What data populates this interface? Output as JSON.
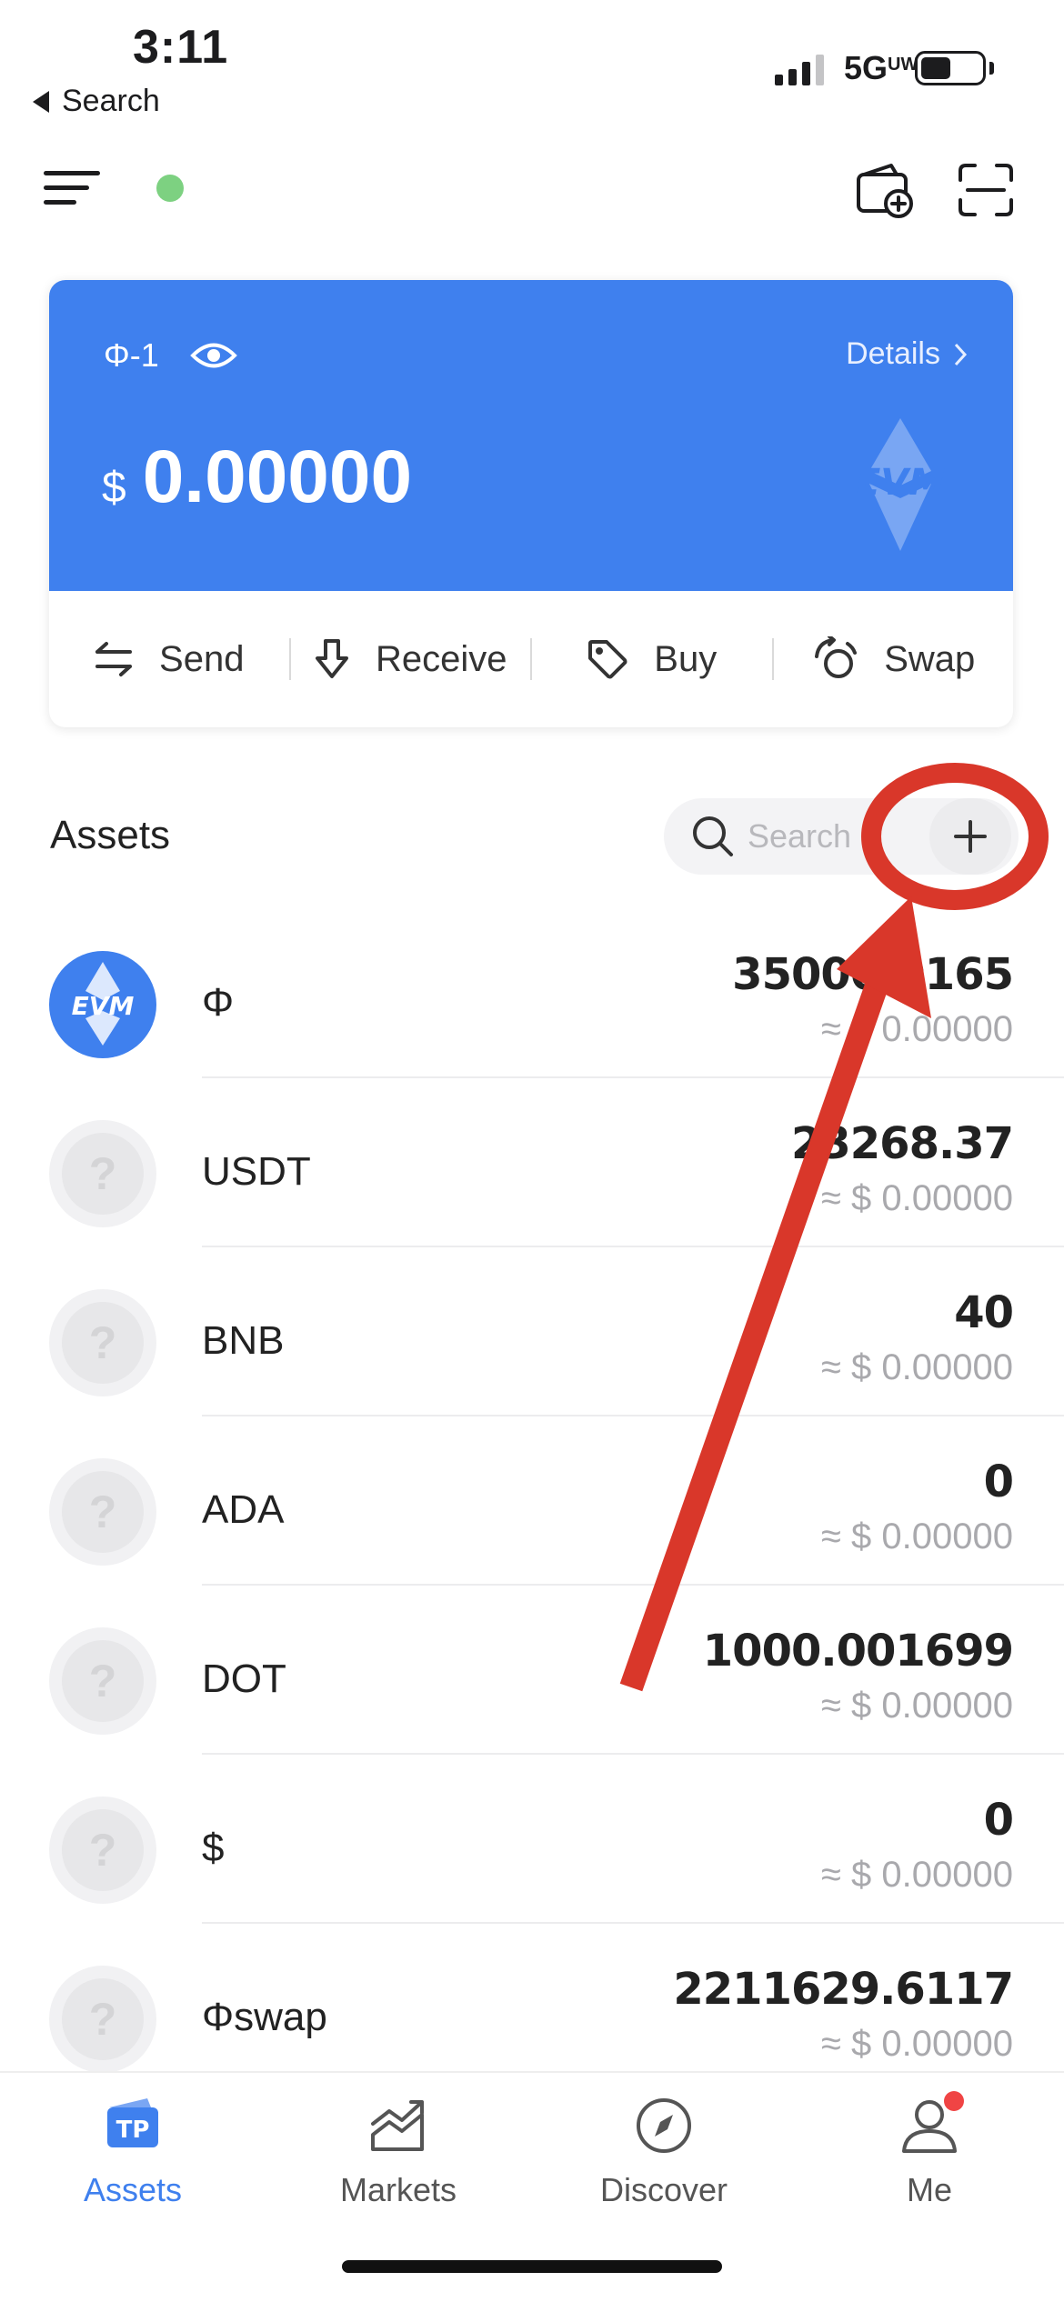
{
  "status_bar": {
    "time": "3:11",
    "back_label": "Search",
    "network": "5G",
    "network_badge": "UW"
  },
  "header": {
    "icons": [
      "menu-icon",
      "online-status-dot",
      "wallet-add-icon",
      "scan-icon"
    ],
    "status_color": "#7dd181"
  },
  "wallet_card": {
    "name": "Φ-1",
    "details_label": "Details",
    "currency_symbol": "$",
    "balance": "0.00000",
    "watermark": "EVM",
    "accent_color": "#3f80ee",
    "actions": [
      {
        "label": "Send",
        "icon": "swap-arrows-icon"
      },
      {
        "label": "Receive",
        "icon": "download-arrow-icon"
      },
      {
        "label": "Buy",
        "icon": "price-tag-icon"
      },
      {
        "label": "Swap",
        "icon": "swap-circle-icon"
      }
    ]
  },
  "assets": {
    "title": "Assets",
    "search_placeholder": "Search",
    "items": [
      {
        "name": "Φ",
        "amount": "35000.0165",
        "fiat": "≈ $ 0.00000",
        "logo": "EVM"
      },
      {
        "name": "USDT",
        "amount": "23268.37",
        "fiat": "≈ $ 0.00000",
        "logo": "?"
      },
      {
        "name": "BNB",
        "amount": "40",
        "fiat": "≈ $ 0.00000",
        "logo": "?"
      },
      {
        "name": "ADA",
        "amount": "0",
        "fiat": "≈ $ 0.00000",
        "logo": "?"
      },
      {
        "name": "DOT",
        "amount": "1000.001699",
        "fiat": "≈ $ 0.00000",
        "logo": "?"
      },
      {
        "name": "$",
        "amount": "0",
        "fiat": "≈ $ 0.00000",
        "logo": "?"
      },
      {
        "name": "Φswap",
        "amount": "2211629.6117",
        "fiat": "≈ $ 0.00000",
        "logo": "?"
      }
    ]
  },
  "annotation": {
    "color": "#d9372a",
    "shapes": [
      "highlight-circle",
      "pointer-arrow"
    ]
  },
  "tab_bar": {
    "tabs": [
      {
        "label": "Assets",
        "icon": "tp-wallet-icon",
        "active": true
      },
      {
        "label": "Markets",
        "icon": "chart-icon",
        "active": false
      },
      {
        "label": "Discover",
        "icon": "compass-icon",
        "active": false
      },
      {
        "label": "Me",
        "icon": "user-icon",
        "active": false
      }
    ],
    "active_color": "#3f80ee",
    "badge_color": "#f04444"
  }
}
